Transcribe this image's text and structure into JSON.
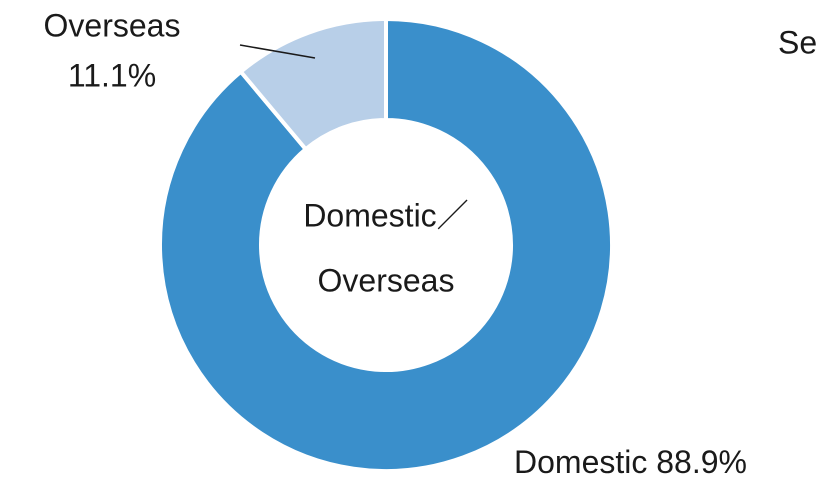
{
  "chart_data": {
    "type": "donut",
    "categories": [
      "Domestic",
      "Overseas"
    ],
    "values": [
      88.9,
      11.1
    ],
    "value_labels": [
      "88.9%",
      "11.1%"
    ],
    "colors": [
      "#3a8fcb",
      "#b8cfe8"
    ],
    "center_label": [
      "Domestic／",
      "Overseas"
    ],
    "annotations": [
      "Se"
    ]
  }
}
